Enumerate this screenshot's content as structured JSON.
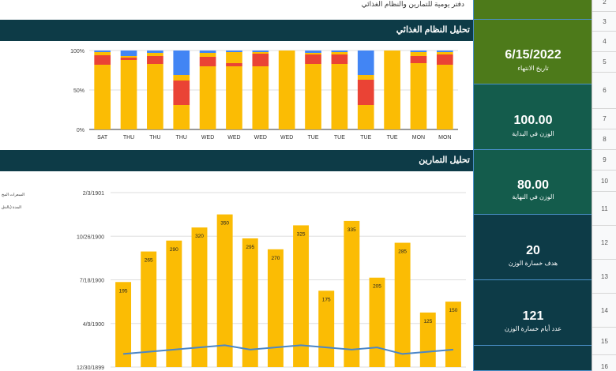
{
  "caption": "دفتر يومية للتمارين والنظام الغذائي",
  "nutrition_section": {
    "title": "تحليل النظام الغذائي"
  },
  "exercise_section": {
    "title": "تحليل التمارين"
  },
  "legend": {
    "item1": "السعرات المح",
    "item2": "المدة (بالدق"
  },
  "kpis": [
    {
      "value": "",
      "label": "",
      "color": "#4d7a1a"
    },
    {
      "value": "6/15/2022",
      "label": "تاريخ الانتهاء",
      "color": "#4d7a1a"
    },
    {
      "value": "100.00",
      "label": "الوزن في البداية",
      "color": "#145c4c"
    },
    {
      "value": "80.00",
      "label": "الوزن في النهاية",
      "color": "#145c4c"
    },
    {
      "value": "20",
      "label": "هدف خسارة الوزن",
      "color": "#0d3b47"
    },
    {
      "value": "121",
      "label": "عدد أيام خسارة الوزن",
      "color": "#0d3b47"
    }
  ],
  "row_numbers": [
    "2",
    "3",
    "4",
    "5",
    "6",
    "7",
    "8",
    "9",
    "10",
    "11",
    "12",
    "13",
    "14",
    "15",
    "16"
  ],
  "colors": {
    "header_bg": "#0d3b47",
    "bar_yellow": "#fbbc04",
    "bar_red": "#ea4335",
    "bar_blue": "#4285f4",
    "line_blue": "#4a86c8"
  },
  "chart_data": [
    {
      "type": "bar",
      "stacked": "percent",
      "categories": [
        "SAT",
        "THU",
        "THU",
        "THU",
        "WED",
        "WED",
        "WED",
        "WED",
        "TUE",
        "TUE",
        "TUE",
        "TUE",
        "MON",
        "MON"
      ],
      "y_ticks": [
        "100%",
        "50%",
        "0%"
      ],
      "ylim": [
        0,
        100
      ],
      "series": [
        {
          "values": [
            82,
            88,
            83,
            31,
            80,
            80,
            80,
            100,
            83,
            83,
            31,
            100,
            84,
            82
          ]
        },
        {
          "values": [
            12,
            3,
            10,
            31,
            12,
            4,
            16,
            0,
            12,
            12,
            32,
            0,
            9,
            13
          ]
        },
        {
          "values": [
            4,
            2,
            4,
            7,
            5,
            14,
            2,
            0,
            2,
            3,
            6,
            0,
            5,
            3
          ]
        },
        {
          "values": [
            2,
            7,
            3,
            31,
            3,
            2,
            2,
            0,
            3,
            2,
            31,
            0,
            2,
            2
          ]
        }
      ]
    },
    {
      "type": "bar",
      "y_ticks": [
        "2/3/1901",
        "10/26/1900",
        "7/18/1900",
        "4/9/1900",
        "12/30/1899"
      ],
      "ylim": [
        0,
        400
      ],
      "bar_values": [
        195,
        265,
        290,
        320,
        350,
        295,
        270,
        325,
        175,
        335,
        205,
        285,
        125,
        150
      ],
      "bar_labels": [
        "195",
        "265",
        "290",
        "320",
        "350",
        "295",
        "270",
        "325",
        "175",
        "335",
        "205",
        "285",
        "125",
        "150"
      ],
      "line_values": [
        30,
        35,
        40,
        45,
        50,
        40,
        45,
        50,
        45,
        40,
        45,
        30,
        35,
        40
      ]
    }
  ]
}
